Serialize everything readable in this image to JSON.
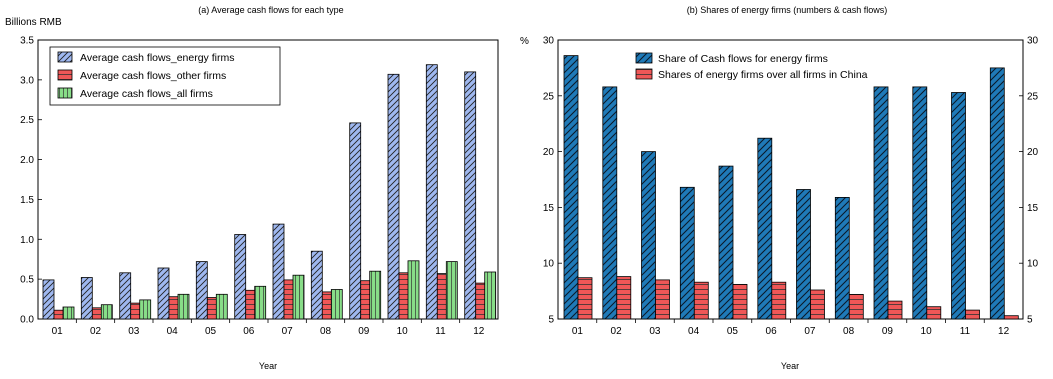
{
  "chart_data": [
    {
      "type": "bar",
      "title": "(a)  Average cash flows for each type",
      "ylabel": "Billions RMB",
      "xlabel": "Year",
      "categories": [
        "01",
        "02",
        "03",
        "04",
        "05",
        "06",
        "07",
        "08",
        "09",
        "10",
        "11",
        "12"
      ],
      "ylim": [
        0,
        3.5
      ],
      "yticks": [
        "0.0",
        "0.5",
        "1.0",
        "1.5",
        "2.0",
        "2.5",
        "3.0",
        "3.5"
      ],
      "grid": false,
      "legend_position": "top-left",
      "series": [
        {
          "name": "Average cash flows_energy firms",
          "color": "#9fb8f0",
          "pattern": "diagonal-hatch",
          "values": [
            0.49,
            0.52,
            0.58,
            0.64,
            0.72,
            1.06,
            1.19,
            0.85,
            2.46,
            3.07,
            3.19,
            3.1
          ]
        },
        {
          "name": "Average cash flows_other firms",
          "color": "#ef5757",
          "pattern": "horizontal-lines",
          "values": [
            0.11,
            0.14,
            0.2,
            0.28,
            0.27,
            0.36,
            0.49,
            0.34,
            0.48,
            0.58,
            0.57,
            0.45
          ]
        },
        {
          "name": "Average cash flows_all firms",
          "color": "#88dd88",
          "pattern": "vertical-lines",
          "values": [
            0.15,
            0.18,
            0.24,
            0.31,
            0.31,
            0.41,
            0.55,
            0.37,
            0.6,
            0.73,
            0.72,
            0.59
          ]
        }
      ]
    },
    {
      "type": "bar",
      "title": "(b)  Shares of energy firms (numbers & cash flows)",
      "ylabel": "%",
      "xlabel": "Year",
      "categories": [
        "01",
        "02",
        "03",
        "04",
        "05",
        "06",
        "07",
        "08",
        "09",
        "10",
        "11",
        "12"
      ],
      "ylim": [
        5,
        30
      ],
      "yticks": [
        "5",
        "10",
        "15",
        "20",
        "25",
        "30"
      ],
      "y2ticks": [
        "5",
        "10",
        "15",
        "20",
        "25",
        "30"
      ],
      "grid": false,
      "legend_position": "top-center",
      "series": [
        {
          "name": "Share of Cash flows for energy firms",
          "color": "#1f7ab8",
          "pattern": "diagonal-hatch",
          "values": [
            28.6,
            25.8,
            20.0,
            16.8,
            18.7,
            21.2,
            16.6,
            15.9,
            25.8,
            25.8,
            25.3,
            27.5
          ]
        },
        {
          "name": "Shares of energy firms over all firms in China",
          "color": "#ef5757",
          "pattern": "horizontal-lines",
          "values": [
            8.7,
            8.8,
            8.5,
            8.3,
            8.1,
            8.3,
            7.6,
            7.2,
            6.6,
            6.1,
            5.8,
            5.3
          ]
        }
      ]
    }
  ]
}
